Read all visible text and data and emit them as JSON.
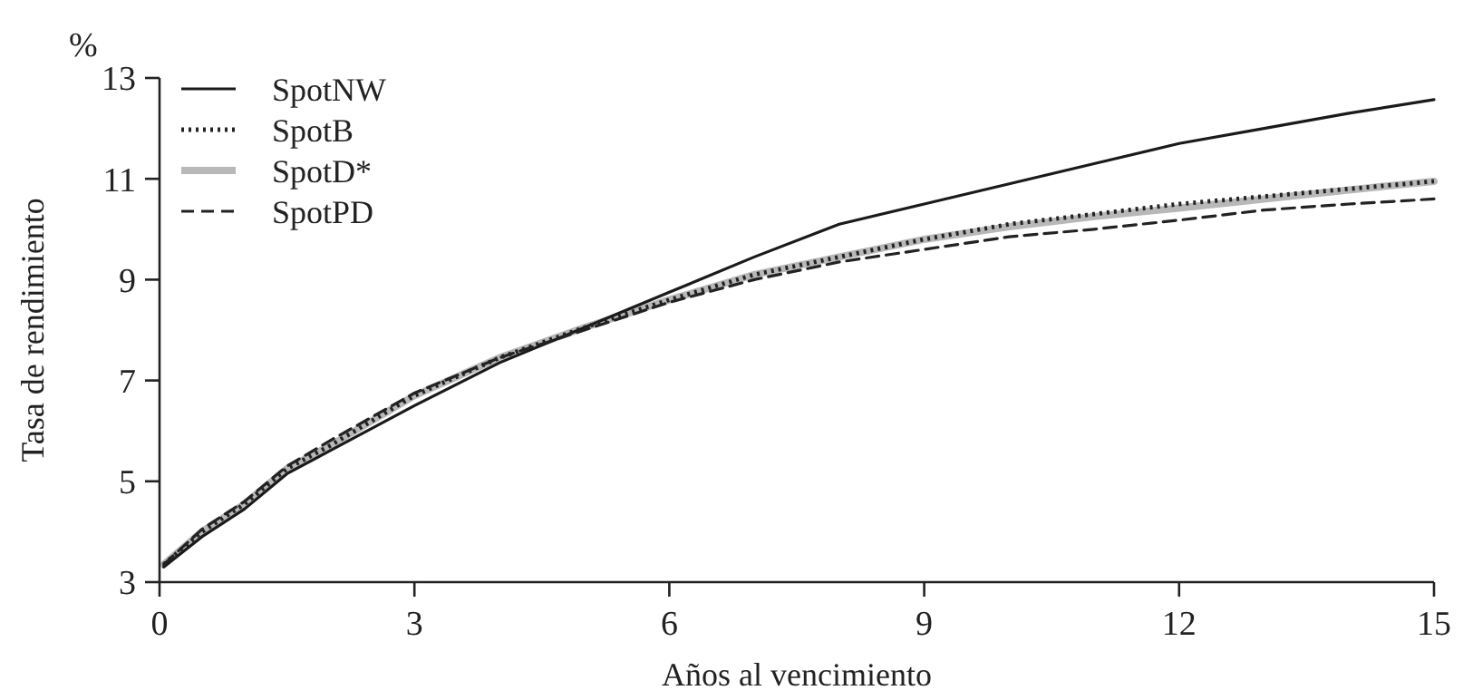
{
  "chart_data": {
    "type": "line",
    "xlabel": "Años al vencimiento",
    "ylabel": "Tasa de rendimiento",
    "annotations": [
      "%"
    ],
    "x": [
      0.05,
      0.5,
      1,
      1.5,
      2,
      3,
      4,
      5,
      6,
      7,
      8,
      9,
      10,
      11,
      12,
      13,
      14,
      15
    ],
    "series": [
      {
        "name": "SpotNW",
        "color": "#1a1a1a",
        "line_style": "solid",
        "values": [
          3.3,
          3.9,
          4.45,
          5.15,
          5.6,
          6.5,
          7.35,
          8.05,
          8.75,
          9.45,
          10.1,
          10.5,
          10.9,
          11.3,
          11.7,
          12.0,
          12.3,
          12.57
        ]
      },
      {
        "name": "SpotB",
        "color": "#222222",
        "line_style": "dotted",
        "values": [
          3.35,
          4.0,
          4.55,
          5.25,
          5.7,
          6.7,
          7.45,
          8.05,
          8.6,
          9.1,
          9.45,
          9.8,
          10.1,
          10.3,
          10.5,
          10.65,
          10.8,
          10.95
        ]
      },
      {
        "name": "SpotD*",
        "color": "#b8b8b8",
        "line_style": "solid",
        "values": [
          3.35,
          4.0,
          4.55,
          5.25,
          5.7,
          6.7,
          7.45,
          8.05,
          8.6,
          9.1,
          9.45,
          9.8,
          10.05,
          10.25,
          10.42,
          10.6,
          10.78,
          10.95
        ]
      },
      {
        "name": "SpotPD",
        "color": "#222222",
        "line_style": "dashed",
        "values": [
          3.35,
          4.05,
          4.6,
          5.3,
          5.8,
          6.75,
          7.45,
          8.0,
          8.55,
          9.0,
          9.35,
          9.6,
          9.85,
          10.0,
          10.18,
          10.38,
          10.5,
          10.6
        ]
      }
    ],
    "xlim": [
      0,
      15
    ],
    "xticks": [
      0,
      3,
      6,
      9,
      12,
      15
    ],
    "ylim": [
      3,
      13
    ],
    "yticks": [
      3,
      5,
      7,
      9,
      11,
      13
    ],
    "grid": false,
    "legend": "top left",
    "marker": "none"
  }
}
